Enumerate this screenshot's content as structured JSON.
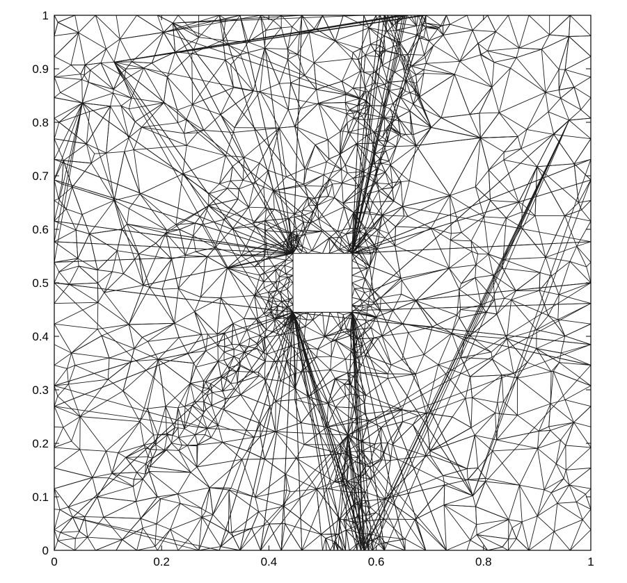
{
  "chart_data": {
    "type": "mesh",
    "title": "",
    "xlabel": "",
    "ylabel": "",
    "xlim": [
      0,
      1
    ],
    "ylim": [
      0,
      1
    ],
    "x_ticks": [
      "0",
      "0.2",
      "0.4",
      "0.6",
      "0.8",
      "1"
    ],
    "y_ticks": [
      "0",
      "0.1",
      "0.2",
      "0.3",
      "0.4",
      "0.5",
      "0.6",
      "0.7",
      "0.8",
      "0.9",
      "1"
    ],
    "grid": false,
    "hole": {
      "x": [
        0.445,
        0.555
      ],
      "y": [
        0.445,
        0.555
      ]
    },
    "refinement_bands": [
      {
        "name": "",
        "path": [
          [
            0.15,
            0.15
          ],
          [
            0.3,
            0.3
          ],
          [
            0.4,
            0.45
          ],
          [
            0.48,
            0.62
          ],
          [
            0.56,
            0.82
          ],
          [
            0.64,
            1.0
          ]
        ]
      },
      {
        "name": "",
        "path": [
          [
            0.57,
            0.0
          ],
          [
            0.555,
            0.2
          ],
          [
            0.555,
            0.45
          ],
          [
            0.58,
            0.65
          ],
          [
            0.64,
            0.85
          ],
          [
            0.69,
            1.0
          ]
        ]
      }
    ],
    "line_color": "#1a1a1a",
    "background_color": "#ffffff"
  }
}
